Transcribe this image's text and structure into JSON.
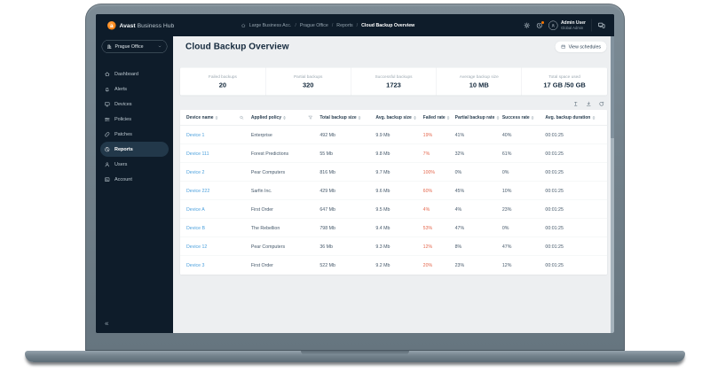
{
  "topbar": {
    "brand_bold": "Avast",
    "brand_rest": "Business Hub",
    "avast_logo_letter": "a",
    "breadcrumb": [
      "Large Business Acc.",
      "Prague Office",
      "Reports",
      "Cloud Backup Overview"
    ],
    "home_icon": "home-icon",
    "gear_icon": "gear-icon",
    "notifications_icon": "notifications-icon",
    "avatar_icon": "person-icon",
    "console_icon": "devices-console-icon",
    "user": {
      "name": "Admin User",
      "role": "Global Admin"
    }
  },
  "sidebar": {
    "org_selector": {
      "label": "Prague Office",
      "icon": "building-icon",
      "chevron": "chevron-down-icon"
    },
    "items": [
      {
        "label": "Dashboard",
        "icon": "home-icon"
      },
      {
        "label": "Alerts",
        "icon": "bell-icon"
      },
      {
        "label": "Devices",
        "icon": "monitor-icon"
      },
      {
        "label": "Policies",
        "icon": "sliders-icon"
      },
      {
        "label": "Patches",
        "icon": "patch-icon"
      },
      {
        "label": "Reports",
        "icon": "report-icon",
        "active": true
      },
      {
        "label": "Users",
        "icon": "users-icon"
      },
      {
        "label": "Account",
        "icon": "account-icon"
      }
    ],
    "collapse_glyph": "«"
  },
  "page": {
    "title": "Cloud Backup Overview",
    "view_schedules": {
      "label": "View schedules",
      "icon": "calendar-icon"
    }
  },
  "stats": [
    {
      "label": "Failed backups",
      "value": "20"
    },
    {
      "label": "Partial backups",
      "value": "320"
    },
    {
      "label": "Successful backups",
      "value": "1723"
    },
    {
      "label": "Average backup size",
      "value": "10 MB"
    },
    {
      "label": "Total space used",
      "value": "17 GB /50 GB"
    }
  ],
  "table": {
    "toolbar_icons": [
      "column-settings-icon",
      "download-icon",
      "refresh-icon"
    ],
    "columns": [
      {
        "label": "Device name",
        "extra_icon": "search-icon"
      },
      {
        "label": "Applied policy",
        "extra_icon": "filter-icon"
      },
      {
        "label": "Total backup size"
      },
      {
        "label": "Avg. backup size"
      },
      {
        "label": "Failed rate"
      },
      {
        "label": "Partial backup rate"
      },
      {
        "label": "Success rate"
      },
      {
        "label": "Avg. backup duration"
      }
    ],
    "rows": [
      {
        "device": "Device 1",
        "policy": "Enterprise",
        "total": "492 Mb",
        "avg": "9.9 Mb",
        "failed": "19%",
        "partial": "41%",
        "success": "40%",
        "duration": "00:01:25"
      },
      {
        "device": "Device 111",
        "policy": "Forest Predictions",
        "total": "55 Mb",
        "avg": "9.8 Mb",
        "failed": "7%",
        "partial": "32%",
        "success": "61%",
        "duration": "00:01:25"
      },
      {
        "device": "Device 2",
        "policy": "Pear Computers",
        "total": "816 Mb",
        "avg": "9.7 Mb",
        "failed": "100%",
        "partial": "0%",
        "success": "0%",
        "duration": "00:01:25"
      },
      {
        "device": "Device 222",
        "policy": "Sarfin Inc.",
        "total": "429 Mb",
        "avg": "9.6 Mb",
        "failed": "60%",
        "partial": "45%",
        "success": "10%",
        "duration": "00:01:25"
      },
      {
        "device": "Device A",
        "policy": "First Order",
        "total": "647 Mb",
        "avg": "9.5 Mb",
        "failed": "4%",
        "partial": "4%",
        "success": "23%",
        "duration": "00:01:25"
      },
      {
        "device": "Device B",
        "policy": "The Rebellion",
        "total": "798 Mb",
        "avg": "9.4 Mb",
        "failed": "53%",
        "partial": "47%",
        "success": "0%",
        "duration": "00:01:25"
      },
      {
        "device": "Device 12",
        "policy": "Pear Computers",
        "total": "36 Mb",
        "avg": "9.3 Mb",
        "failed": "12%",
        "partial": "8%",
        "success": "47%",
        "duration": "00:01:25"
      },
      {
        "device": "Device 3",
        "policy": "First Order",
        "total": "522 Mb",
        "avg": "9.2 Mb",
        "failed": "20%",
        "partial": "23%",
        "success": "12%",
        "duration": "00:01:25"
      }
    ]
  },
  "colors": {
    "brand_orange": "#ff7800",
    "navy": "#0e1c2a",
    "link_blue": "#4da1dd",
    "failed_red": "#e5684e",
    "content_bg": "#edeff1"
  }
}
